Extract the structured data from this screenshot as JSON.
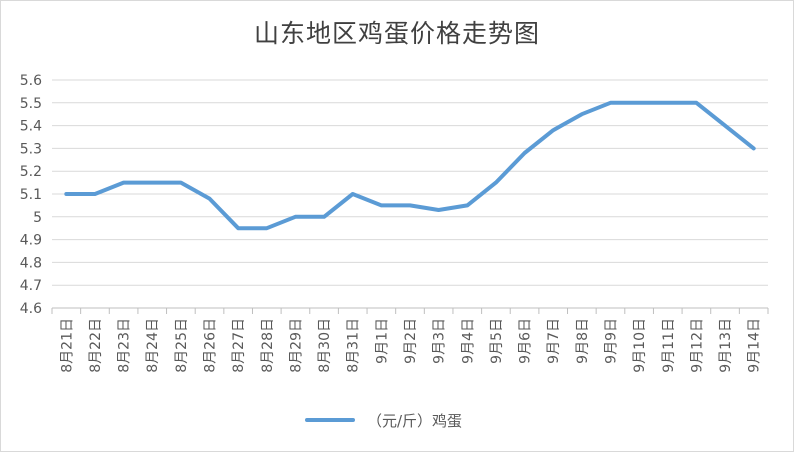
{
  "chart_data": {
    "type": "line",
    "title": "山东地区鸡蛋价格走势图",
    "categories": [
      "8月21日",
      "8月22日",
      "8月23日",
      "8月24日",
      "8月25日",
      "8月26日",
      "8月27日",
      "8月28日",
      "8月29日",
      "8月30日",
      "8月31日",
      "9月1日",
      "9月2日",
      "9月3日",
      "9月4日",
      "9月5日",
      "9月6日",
      "9月7日",
      "9月8日",
      "9月9日",
      "9月10日",
      "9月11日",
      "9月12日",
      "9月13日",
      "9月14日"
    ],
    "series": [
      {
        "name": "（元/斤）鸡蛋",
        "color": "#5b9bd5",
        "values": [
          5.1,
          5.1,
          5.15,
          5.15,
          5.15,
          5.08,
          4.95,
          4.95,
          5.0,
          5.0,
          5.1,
          5.05,
          5.05,
          5.03,
          5.05,
          5.15,
          5.28,
          5.38,
          5.45,
          5.5,
          5.5,
          5.5,
          5.5,
          5.4,
          5.3
        ]
      }
    ],
    "ylim": [
      4.6,
      5.6
    ],
    "yticks": [
      "4.6",
      "4.7",
      "4.8",
      "4.9",
      "5",
      "5.1",
      "5.2",
      "5.3",
      "5.4",
      "5.5",
      "5.6"
    ],
    "grid": true,
    "legend_position": "bottom"
  }
}
